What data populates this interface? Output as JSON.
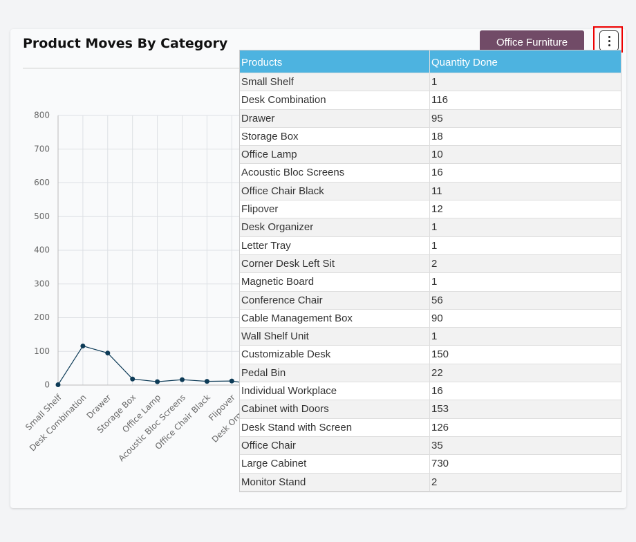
{
  "header": {
    "title": "Product Moves By Category",
    "dropdown": "Office Furniture"
  },
  "chart": {
    "type": "line",
    "color": "#0d3b57",
    "ylim": [
      0,
      800
    ],
    "yticks": [
      0,
      100,
      200,
      300,
      400,
      500,
      600,
      700,
      800
    ],
    "grid": true
  },
  "table": {
    "columns": [
      "Products",
      "Quantity Done"
    ],
    "rows": [
      [
        "Small Shelf",
        1
      ],
      [
        "Desk Combination",
        116
      ],
      [
        "Drawer",
        95
      ],
      [
        "Storage Box",
        18
      ],
      [
        "Office Lamp",
        10
      ],
      [
        "Acoustic Bloc Screens",
        16
      ],
      [
        "Office Chair Black",
        11
      ],
      [
        "Flipover",
        12
      ],
      [
        "Desk Organizer",
        1
      ],
      [
        "Letter Tray",
        1
      ],
      [
        "Corner Desk Left Sit",
        2
      ],
      [
        "Magnetic Board",
        1
      ],
      [
        "Conference Chair",
        56
      ],
      [
        "Cable Management Box",
        90
      ],
      [
        "Wall Shelf Unit",
        1
      ],
      [
        "Customizable Desk",
        150
      ],
      [
        "Pedal Bin",
        22
      ],
      [
        "Individual Workplace",
        16
      ],
      [
        "Cabinet with Doors",
        153
      ],
      [
        "Desk Stand with Screen",
        126
      ],
      [
        "Office Chair",
        35
      ],
      [
        "Large Cabinet",
        730
      ],
      [
        "Monitor Stand",
        2
      ]
    ]
  }
}
